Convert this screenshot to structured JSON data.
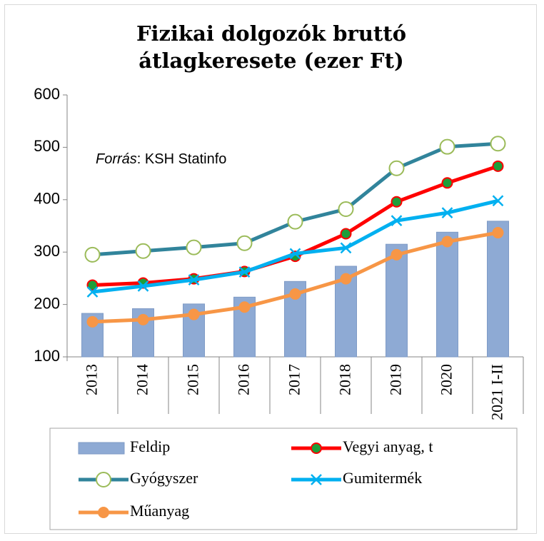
{
  "chart_data": {
    "type": "bar-line",
    "title": "Fizikai dolgozók bruttó átlagkeresete (ezer Ft)",
    "annotation_label": "Forrás",
    "annotation": ": KSH Statinfo",
    "categories": [
      "2013",
      "2014",
      "2015",
      "2016",
      "2017",
      "2018",
      "2019",
      "2020",
      "2021 I-II"
    ],
    "ylim": [
      100,
      600
    ],
    "yticks": [
      100,
      200,
      300,
      400,
      500,
      600
    ],
    "series": [
      {
        "name": "Feldip",
        "type": "bar",
        "color": "#8eaad4",
        "values": [
          183,
          192,
          201,
          214,
          244,
          273,
          315,
          338,
          359
        ]
      },
      {
        "name": "Vegyi anyag, t",
        "type": "line",
        "color": "#ff0000",
        "marker": "circle",
        "marker_color": "#1e9e3a",
        "values": [
          237,
          241,
          249,
          263,
          292,
          335,
          396,
          432,
          464
        ]
      },
      {
        "name": "Gyógyszer",
        "type": "line",
        "color": "#31849b",
        "marker": "hollow-circle",
        "marker_color": "#9bbb59",
        "values": [
          295,
          302,
          309,
          317,
          358,
          382,
          460,
          501,
          507
        ]
      },
      {
        "name": "Gumitermék",
        "type": "line",
        "color": "#00b0f0",
        "marker": "x",
        "marker_color": "#00b0f0",
        "values": [
          224,
          235,
          247,
          262,
          297,
          308,
          360,
          375,
          398
        ]
      },
      {
        "name": "Műanyag",
        "type": "line",
        "color": "#f79646",
        "marker": "circle",
        "marker_color": "#f79646",
        "values": [
          167,
          171,
          181,
          195,
          220,
          249,
          295,
          320,
          337
        ]
      }
    ]
  }
}
